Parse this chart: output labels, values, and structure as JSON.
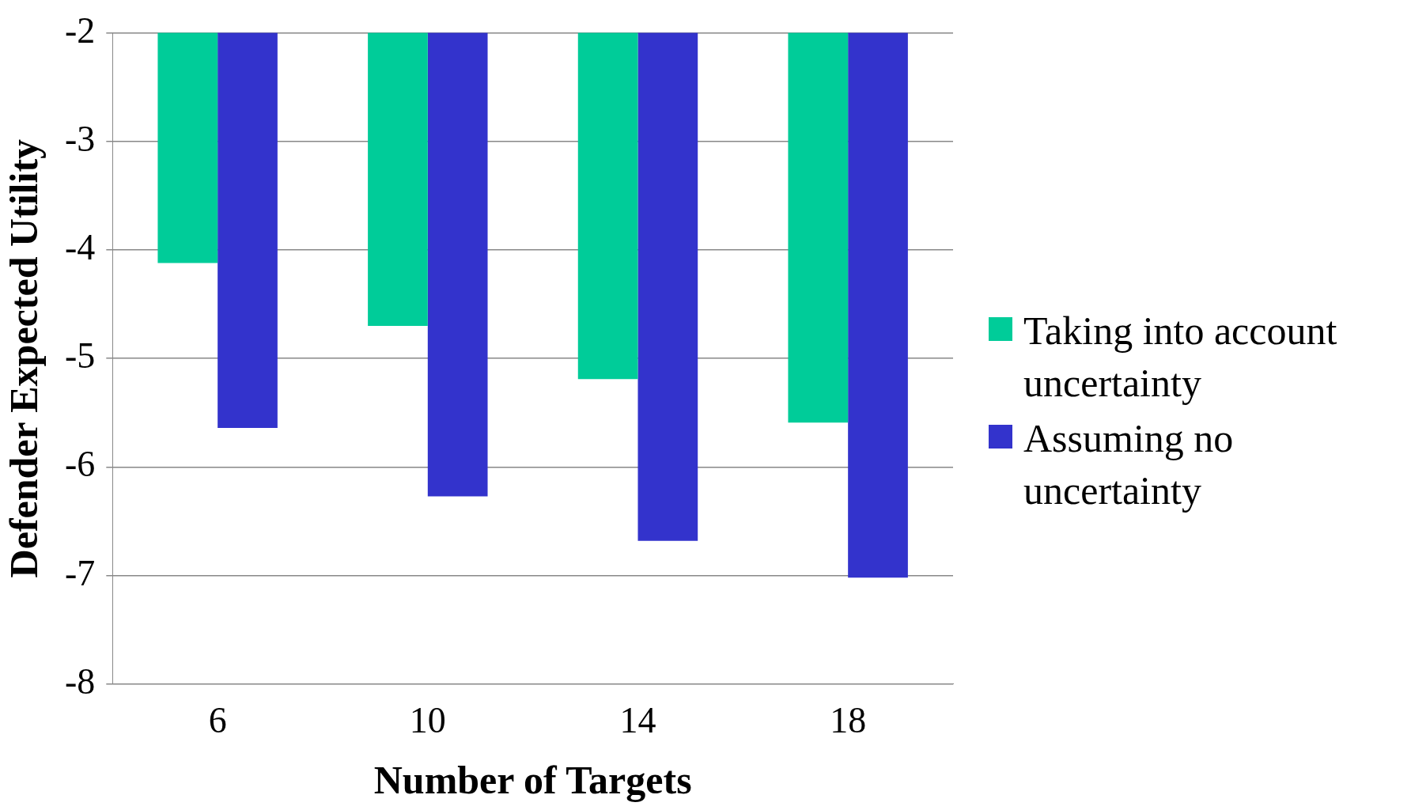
{
  "chart_data": {
    "type": "bar",
    "xlabel": "Number of Targets",
    "ylabel": "Defender Expected Utility",
    "categories": [
      "6",
      "10",
      "14",
      "18"
    ],
    "series": [
      {
        "name": "Taking into account uncertainty",
        "color": "#00cc99",
        "values": [
          -4.12,
          -4.7,
          -5.19,
          -5.59
        ]
      },
      {
        "name": "Assuming no uncertainty",
        "color": "#3333cc",
        "values": [
          -5.64,
          -6.27,
          -6.68,
          -7.02
        ]
      }
    ],
    "ylim": [
      -8,
      -2
    ],
    "yticks": [
      -8,
      -7,
      -6,
      -5,
      -4,
      -3,
      -2
    ],
    "grid": "y",
    "legend": "right"
  }
}
